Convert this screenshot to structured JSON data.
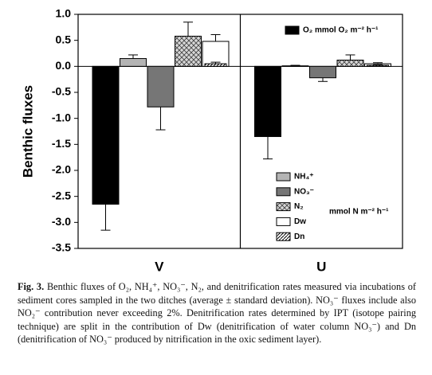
{
  "chart_data": {
    "type": "bar",
    "y_label": "Benthic fluxes",
    "categories": [
      "V",
      "U"
    ],
    "ylim": [
      -3.5,
      1.0
    ],
    "yticks": [
      {
        "value": 1,
        "label": "1.0"
      },
      0.5,
      {
        "value": 0,
        "label": "0.0"
      },
      -0.5,
      {
        "value": -1,
        "label": "-1.0"
      },
      -1.5,
      {
        "value": -2,
        "label": "-2.0"
      },
      -2.5,
      {
        "value": -3,
        "label": "-3.0"
      },
      -3.5
    ],
    "series": [
      {
        "name": "O₂ mmol O₂ m⁻² h⁻¹",
        "color": "#000000",
        "pattern": "solid",
        "values": [
          -2.65,
          -1.35
        ],
        "errors": [
          0.5,
          0.43
        ]
      },
      {
        "name": "NH₄⁺",
        "color": "#b4b4b4",
        "pattern": "solid",
        "values": [
          0.15,
          0.01
        ],
        "errors": [
          0.07,
          0.01
        ]
      },
      {
        "name": "NO₃⁻",
        "color": "#767676",
        "pattern": "solid",
        "values": [
          -0.78,
          -0.22
        ],
        "errors": [
          0.44,
          0.07
        ]
      },
      {
        "name": "N₂",
        "color": "#cccccc",
        "pattern": "crosshatch",
        "values": [
          0.58,
          0.12
        ],
        "errors": [
          0.27,
          0.1
        ]
      },
      {
        "name": "Dw",
        "color": "#ffffff",
        "pattern": "solid",
        "values": [
          0.48,
          0.05
        ],
        "errors": [
          0.13,
          0.02
        ]
      },
      {
        "name": "Dn",
        "color": "#ffffff",
        "pattern": "diagonal",
        "values": [
          0.05,
          0.02
        ],
        "errors": [
          0.03,
          0.01
        ]
      }
    ],
    "annotation": "mmol N m⁻² h⁻¹"
  },
  "caption": {
    "label": "Fig. 3.",
    "text": "Benthic fluxes of O₂, NH₄⁺, NO₃⁻, N₂, and denitrification rates measured via incubations of sediment cores sampled in the two ditches (average ± standard deviation). NO₃⁻ fluxes include also NO₂⁻ contribution never exceeding 2%. Denitrification rates determined by IPT (isotope pairing technique) are split in the contribution of Dw (denitrification of water column NO₃⁻) and Dn (denitrification of NO₃⁻ produced by nitrification in the oxic sediment layer)."
  }
}
